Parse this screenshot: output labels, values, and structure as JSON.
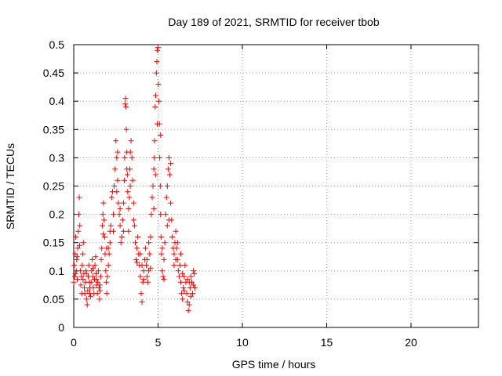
{
  "colors": {
    "series": "#ff0000",
    "grid": "#a0a0a0",
    "axis": "#000000"
  },
  "chart_data": {
    "type": "scatter",
    "title": "Day 189 of 2021, SRMTID for receiver tbob",
    "xlabel": "GPS time / hours",
    "ylabel": "SRMTID / TECUs",
    "xlim": [
      0,
      24
    ],
    "ylim": [
      0,
      0.5
    ],
    "xticks": [
      0,
      5,
      10,
      15,
      20
    ],
    "yticks": [
      0,
      0.05,
      0.1,
      0.15,
      0.2,
      0.25,
      0.3,
      0.35,
      0.4,
      0.45,
      0.5
    ],
    "grid": true,
    "marker": "+",
    "series": [
      {
        "name": "SRMTID",
        "points": [
          [
            0.0,
            0.08
          ],
          [
            0.03,
            0.11
          ],
          [
            0.06,
            0.09
          ],
          [
            0.09,
            0.13
          ],
          [
            0.12,
            0.16
          ],
          [
            0.15,
            0.1
          ],
          [
            0.18,
            0.12
          ],
          [
            0.21,
            0.085
          ],
          [
            0.24,
            0.14
          ],
          [
            0.27,
            0.17
          ],
          [
            0.3,
            0.2
          ],
          [
            0.33,
            0.23
          ],
          [
            0.36,
            0.18
          ],
          [
            0.39,
            0.1
          ],
          [
            0.42,
            0.075
          ],
          [
            0.45,
            0.09
          ],
          [
            0.48,
            0.06
          ],
          [
            0.51,
            0.11
          ],
          [
            0.54,
            0.13
          ],
          [
            0.57,
            0.15
          ],
          [
            0.6,
            0.095
          ],
          [
            0.63,
            0.07
          ],
          [
            0.66,
            0.06
          ],
          [
            0.7,
            0.08
          ],
          [
            0.73,
            0.1
          ],
          [
            0.76,
            0.05
          ],
          [
            0.8,
            0.04
          ],
          [
            0.83,
            0.065
          ],
          [
            0.86,
            0.09
          ],
          [
            0.9,
            0.11
          ],
          [
            0.93,
            0.08
          ],
          [
            0.96,
            0.07
          ],
          [
            1.0,
            0.055
          ],
          [
            1.03,
            0.08
          ],
          [
            1.06,
            0.1
          ],
          [
            1.1,
            0.12
          ],
          [
            1.13,
            0.09
          ],
          [
            1.16,
            0.07
          ],
          [
            1.2,
            0.06
          ],
          [
            1.23,
            0.085
          ],
          [
            1.26,
            0.11
          ],
          [
            1.3,
            0.125
          ],
          [
            1.33,
            0.095
          ],
          [
            1.36,
            0.075
          ],
          [
            1.4,
            0.06
          ],
          [
            1.43,
            0.08
          ],
          [
            1.46,
            0.1
          ],
          [
            1.5,
            0.07
          ],
          [
            1.53,
            0.05
          ],
          [
            1.56,
            0.065
          ],
          [
            1.6,
            0.09
          ],
          [
            1.63,
            0.12
          ],
          [
            1.66,
            0.14
          ],
          [
            1.7,
            0.18
          ],
          [
            1.73,
            0.2
          ],
          [
            1.76,
            0.22
          ],
          [
            1.8,
            0.19
          ],
          [
            1.83,
            0.16
          ],
          [
            1.86,
            0.13
          ],
          [
            1.9,
            0.1
          ],
          [
            1.93,
            0.08
          ],
          [
            1.96,
            0.06
          ],
          [
            2.0,
            0.09
          ],
          [
            2.05,
            0.11
          ],
          [
            2.1,
            0.13
          ],
          [
            2.15,
            0.15
          ],
          [
            2.2,
            0.18
          ],
          [
            2.25,
            0.23
          ],
          [
            2.3,
            0.24
          ],
          [
            2.35,
            0.2
          ],
          [
            2.4,
            0.25
          ],
          [
            2.45,
            0.28
          ],
          [
            2.5,
            0.33
          ],
          [
            2.55,
            0.3
          ],
          [
            2.6,
            0.26
          ],
          [
            2.65,
            0.22
          ],
          [
            2.7,
            0.2
          ],
          [
            2.75,
            0.18
          ],
          [
            2.8,
            0.15
          ],
          [
            2.85,
            0.16
          ],
          [
            2.9,
            0.19
          ],
          [
            2.95,
            0.22
          ],
          [
            3.0,
            0.26
          ],
          [
            3.02,
            0.3
          ],
          [
            3.05,
            0.395
          ],
          [
            3.07,
            0.405
          ],
          [
            3.1,
            0.39
          ],
          [
            3.12,
            0.35
          ],
          [
            3.15,
            0.31
          ],
          [
            3.18,
            0.27
          ],
          [
            3.2,
            0.24
          ],
          [
            3.25,
            0.21
          ],
          [
            3.3,
            0.23
          ],
          [
            3.33,
            0.28
          ],
          [
            3.36,
            0.31
          ],
          [
            3.4,
            0.33
          ],
          [
            3.45,
            0.3
          ],
          [
            3.5,
            0.26
          ],
          [
            3.55,
            0.22
          ],
          [
            3.6,
            0.18
          ],
          [
            3.65,
            0.15
          ],
          [
            3.7,
            0.12
          ],
          [
            3.75,
            0.14
          ],
          [
            3.8,
            0.16
          ],
          [
            3.85,
            0.13
          ],
          [
            3.9,
            0.11
          ],
          [
            3.95,
            0.09
          ],
          [
            4.0,
            0.06
          ],
          [
            4.05,
            0.045
          ],
          [
            4.1,
            0.08
          ],
          [
            4.15,
            0.1
          ],
          [
            4.2,
            0.12
          ],
          [
            4.25,
            0.14
          ],
          [
            4.3,
            0.11
          ],
          [
            4.35,
            0.09
          ],
          [
            4.4,
            0.08
          ],
          [
            4.45,
            0.1
          ],
          [
            4.5,
            0.13
          ],
          [
            4.55,
            0.16
          ],
          [
            4.6,
            0.2
          ],
          [
            4.65,
            0.23
          ],
          [
            4.7,
            0.25
          ],
          [
            4.75,
            0.28
          ],
          [
            4.78,
            0.3
          ],
          [
            4.8,
            0.33
          ],
          [
            4.83,
            0.39
          ],
          [
            4.86,
            0.41
          ],
          [
            4.9,
            0.45
          ],
          [
            4.93,
            0.47
          ],
          [
            4.96,
            0.49
          ],
          [
            5.0,
            0.495
          ],
          [
            5.02,
            0.43
          ],
          [
            5.05,
            0.4
          ],
          [
            5.08,
            0.36
          ],
          [
            5.1,
            0.3
          ],
          [
            5.13,
            0.25
          ],
          [
            5.15,
            0.2
          ],
          [
            5.18,
            0.16
          ],
          [
            5.2,
            0.13
          ],
          [
            5.25,
            0.1
          ],
          [
            5.3,
            0.09
          ],
          [
            5.35,
            0.12
          ],
          [
            5.4,
            0.15
          ],
          [
            5.45,
            0.2
          ],
          [
            5.5,
            0.23
          ],
          [
            5.55,
            0.25
          ],
          [
            5.6,
            0.28
          ],
          [
            5.65,
            0.3
          ],
          [
            5.7,
            0.27
          ],
          [
            5.75,
            0.22
          ],
          [
            5.8,
            0.19
          ],
          [
            5.85,
            0.16
          ],
          [
            5.9,
            0.14
          ],
          [
            5.95,
            0.13
          ],
          [
            6.0,
            0.15
          ],
          [
            6.05,
            0.17
          ],
          [
            6.1,
            0.14
          ],
          [
            6.15,
            0.12
          ],
          [
            6.2,
            0.1
          ],
          [
            6.25,
            0.09
          ],
          [
            6.3,
            0.11
          ],
          [
            6.35,
            0.08
          ],
          [
            6.4,
            0.06
          ],
          [
            6.45,
            0.05
          ],
          [
            6.5,
            0.07
          ],
          [
            6.55,
            0.09
          ],
          [
            6.6,
            0.11
          ],
          [
            6.65,
            0.08
          ],
          [
            6.7,
            0.06
          ],
          [
            6.75,
            0.045
          ],
          [
            6.8,
            0.03
          ],
          [
            6.85,
            0.04
          ],
          [
            6.9,
            0.07
          ],
          [
            6.95,
            0.09
          ],
          [
            7.0,
            0.08
          ],
          [
            7.05,
            0.06
          ],
          [
            7.1,
            0.075
          ],
          [
            7.15,
            0.095
          ],
          [
            7.18,
            0.07
          ],
          [
            0.1,
            0.095
          ],
          [
            0.2,
            0.125
          ],
          [
            0.35,
            0.145
          ],
          [
            0.55,
            0.085
          ],
          [
            0.75,
            0.095
          ],
          [
            0.95,
            0.06
          ],
          [
            1.15,
            0.105
          ],
          [
            1.35,
            0.085
          ],
          [
            1.55,
            0.075
          ],
          [
            1.75,
            0.165
          ],
          [
            1.95,
            0.14
          ],
          [
            2.15,
            0.17
          ],
          [
            2.35,
            0.17
          ],
          [
            2.55,
            0.24
          ],
          [
            2.75,
            0.21
          ],
          [
            2.95,
            0.17
          ],
          [
            3.15,
            0.28
          ],
          [
            3.35,
            0.25
          ],
          [
            3.55,
            0.19
          ],
          [
            3.75,
            0.115
          ],
          [
            3.95,
            0.13
          ],
          [
            4.15,
            0.085
          ],
          [
            4.35,
            0.12
          ],
          [
            4.55,
            0.105
          ],
          [
            4.75,
            0.21
          ],
          [
            4.95,
            0.36
          ],
          [
            5.15,
            0.34
          ],
          [
            5.35,
            0.085
          ],
          [
            5.55,
            0.18
          ],
          [
            5.75,
            0.29
          ],
          [
            5.95,
            0.11
          ],
          [
            6.15,
            0.15
          ],
          [
            6.35,
            0.13
          ],
          [
            6.55,
            0.065
          ],
          [
            6.75,
            0.085
          ],
          [
            6.95,
            0.055
          ],
          [
            7.1,
            0.1
          ],
          [
            2.05,
            0.14
          ],
          [
            2.6,
            0.31
          ],
          [
            3.25,
            0.17
          ],
          [
            4.05,
            0.11
          ],
          [
            4.45,
            0.15
          ],
          [
            4.85,
            0.27
          ],
          [
            5.25,
            0.14
          ],
          [
            5.65,
            0.19
          ],
          [
            6.05,
            0.12
          ],
          [
            6.45,
            0.095
          ],
          [
            6.85,
            0.08
          ]
        ]
      }
    ]
  }
}
